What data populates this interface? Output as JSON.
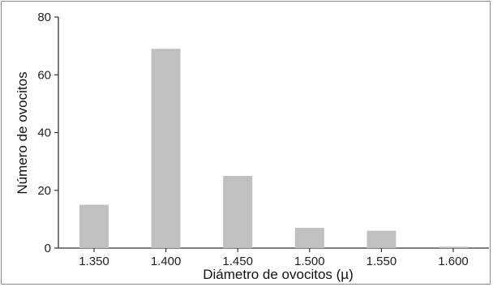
{
  "chart_data": {
    "type": "bar",
    "categories": [
      "1.350",
      "1.400",
      "1.450",
      "1.500",
      "1.550",
      "1.600"
    ],
    "values": [
      15,
      69,
      25,
      7,
      6,
      0.5
    ],
    "xlabel": "Diámetro de ovocitos (µ)",
    "ylabel": "Número de ovocitos",
    "ylim": [
      0,
      80
    ],
    "yticks": [
      "0",
      "20",
      "40",
      "60",
      "80"
    ],
    "grid": false,
    "bar_color": "#c0c0c0"
  }
}
